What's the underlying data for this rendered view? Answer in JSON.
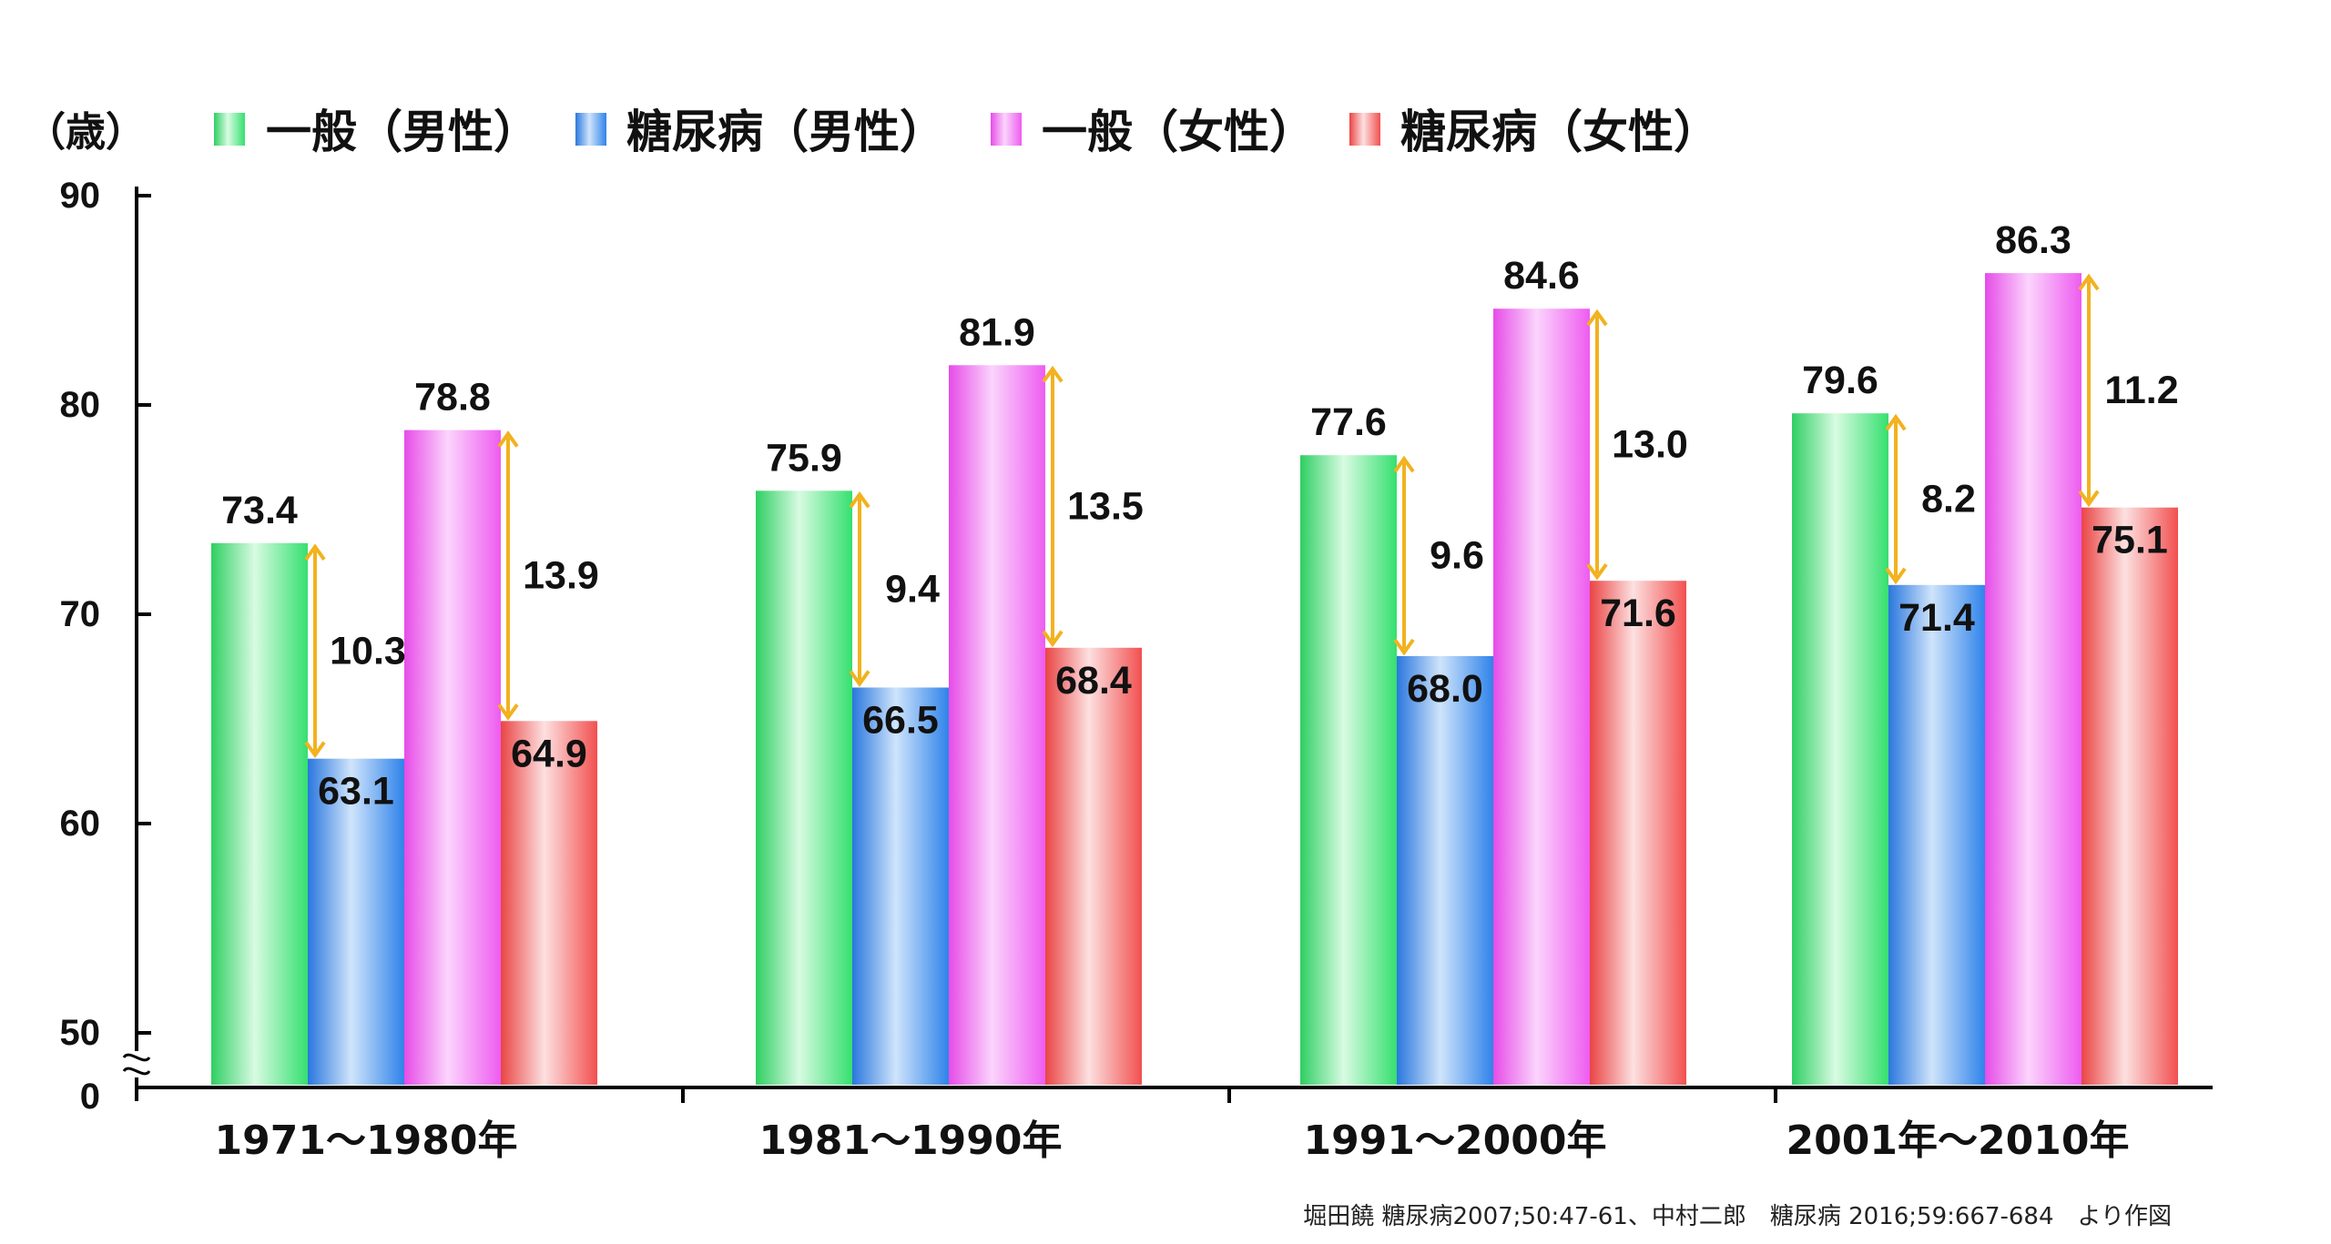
{
  "chart_data": {
    "type": "bar",
    "unit_label": "（歳）",
    "categories": [
      "1971～1980年",
      "1981～1990年",
      "1991～2000年",
      "2001年～2010年"
    ],
    "series": [
      {
        "name": "一般（男性）",
        "values": [
          73.4,
          75.9,
          77.6,
          79.6
        ],
        "value_labels": [
          "73.4",
          "75.9",
          "77.6",
          "79.6"
        ],
        "color_top": "#35e06f",
        "color_light": "#d8fbe2",
        "color_edge": "#2fcf62"
      },
      {
        "name": "糖尿病（男性）",
        "values": [
          63.1,
          66.5,
          68.0,
          71.4
        ],
        "value_labels": [
          "63.1",
          "66.5",
          "68.0",
          "71.4"
        ],
        "color_top": "#2f83ea",
        "color_light": "#cfe4fb",
        "color_edge": "#2a77de"
      },
      {
        "name": "一般（女性）",
        "values": [
          78.8,
          81.9,
          84.6,
          86.3
        ],
        "value_labels": [
          "78.8",
          "81.9",
          "84.6",
          "86.3"
        ],
        "color_top": "#ee5cf0",
        "color_light": "#fbd4fc",
        "color_edge": "#e64ce8"
      },
      {
        "name": "糖尿病（女性）",
        "values": [
          64.9,
          68.4,
          71.6,
          75.1
        ],
        "value_labels": [
          "64.9",
          "68.4",
          "71.6",
          "75.1"
        ],
        "color_top": "#f25050",
        "color_light": "#fde0e0",
        "color_edge": "#ea4444"
      }
    ],
    "differences": {
      "male": [
        "10.3",
        "9.4",
        "9.6",
        "8.2"
      ],
      "female": [
        "13.9",
        "13.5",
        "13.0",
        "11.2"
      ]
    },
    "y_ticks": [
      "90",
      "80",
      "70",
      "60",
      "50",
      "0"
    ],
    "ylim": [
      50,
      90
    ],
    "axis_break": true,
    "grid": false,
    "legend_position": "top",
    "arrow_color": "#f2b21e"
  },
  "source_note": "堀田饒 糖尿病2007;50:47-61、中村二郎　糖尿病 2016;59:667-684　より作図"
}
